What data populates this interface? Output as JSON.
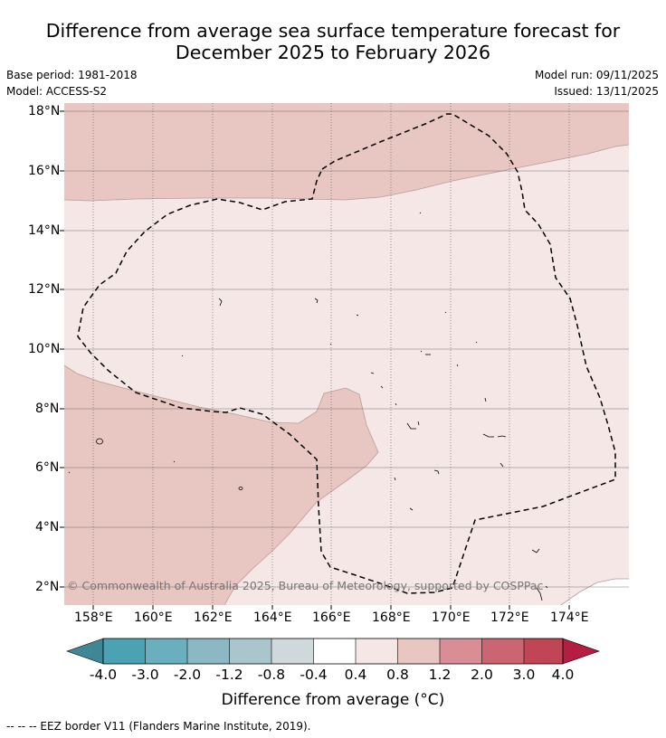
{
  "header": {
    "title_line1": "Difference from average sea surface temperature forecast for",
    "title_line2": "December 2025 to February 2026",
    "base_period": "Base period: 1981-2018",
    "model": "Model: ACCESS-S2",
    "model_run": "Model run: 09/11/2025",
    "issued": "Issued: 13/11/2025"
  },
  "map": {
    "lat_labels": [
      "18°N",
      "16°N",
      "14°N",
      "12°N",
      "10°N",
      "8°N",
      "6°N",
      "4°N",
      "2°N"
    ],
    "lon_labels": [
      "158°E",
      "160°E",
      "162°E",
      "164°E",
      "166°E",
      "168°E",
      "170°E",
      "172°E",
      "174°E"
    ],
    "copyright": "© Commonwealth of Australia 2025, Bureau of Meteorology, supported by COSPPac"
  },
  "colorbar": {
    "ticks": [
      "-4.0",
      "-3.0",
      "-2.0",
      "-1.2",
      "-0.8",
      "-0.4",
      "0.4",
      "0.8",
      "1.2",
      "2.0",
      "3.0",
      "4.0"
    ],
    "colors": [
      "#3f8794",
      "#4aa2b2",
      "#6aafbe",
      "#8cb8c3",
      "#a8c6cb",
      "#cfd9db",
      "#ffffff",
      "#f4e7e6",
      "#e8c6c2",
      "#d98e96",
      "#cb6571",
      "#c04655",
      "#b41e43"
    ],
    "title": "Difference from average (°C)"
  },
  "footnote": "--  --  -- EEZ border V11 (Flanders Marine Institute, 2019)."
}
